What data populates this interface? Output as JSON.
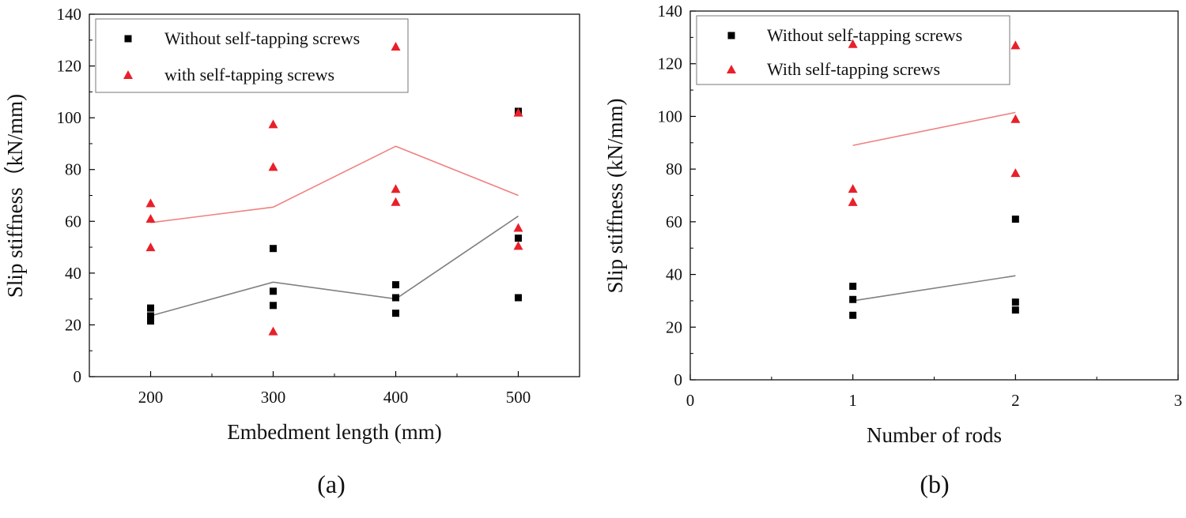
{
  "chart_data": [
    {
      "type": "scatter",
      "panel_label": "(a)",
      "xlabel": "Embedment length (mm)",
      "ylabel": "Slip stiffness（kN/mm)",
      "xlim": [
        150,
        550
      ],
      "ylim": [
        0,
        140
      ],
      "xticks": [
        200,
        300,
        400,
        500
      ],
      "yticks": [
        0,
        20,
        40,
        60,
        80,
        100,
        120,
        140
      ],
      "legend_position": "top-left",
      "series": [
        {
          "name": "Without self-tapping screws",
          "marker": "square",
          "color": "#000000",
          "points": [
            [
              200,
              26.5
            ],
            [
              200,
              23.5
            ],
            [
              200,
              21.5
            ],
            [
              300,
              49.5
            ],
            [
              300,
              33
            ],
            [
              300,
              27.5
            ],
            [
              400,
              35.5
            ],
            [
              400,
              30.5
            ],
            [
              400,
              24.5
            ],
            [
              500,
              102.5
            ],
            [
              500,
              53.5
            ],
            [
              500,
              30.5
            ]
          ],
          "trend": [
            [
              200,
              23.5
            ],
            [
              300,
              36.5
            ],
            [
              400,
              30
            ],
            [
              500,
              62
            ]
          ],
          "trend_color": "#808080"
        },
        {
          "name": "with self-tapping screws",
          "marker": "triangle",
          "color": "#e8202a",
          "points": [
            [
              200,
              67
            ],
            [
              200,
              61
            ],
            [
              200,
              50
            ],
            [
              300,
              97.5
            ],
            [
              300,
              81
            ],
            [
              300,
              17.5
            ],
            [
              400,
              127.5
            ],
            [
              400,
              72.5
            ],
            [
              400,
              67.5
            ],
            [
              500,
              102
            ],
            [
              500,
              57.5
            ],
            [
              500,
              50.5
            ]
          ],
          "trend": [
            [
              200,
              59.5
            ],
            [
              300,
              65.5
            ],
            [
              400,
              89
            ],
            [
              500,
              70
            ]
          ],
          "trend_color": "#f08080"
        }
      ]
    },
    {
      "type": "scatter",
      "panel_label": "(b)",
      "xlabel": "Number of rods",
      "ylabel": "Slip stiffness (kN/mm)",
      "xlim": [
        0,
        3
      ],
      "ylim": [
        0,
        140
      ],
      "xticks": [
        0,
        1,
        2,
        3
      ],
      "yticks": [
        0,
        20,
        40,
        60,
        80,
        100,
        120,
        140
      ],
      "legend_position": "top-left",
      "series": [
        {
          "name": "Without self-tapping screws",
          "marker": "square",
          "color": "#000000",
          "points": [
            [
              1,
              35.5
            ],
            [
              1,
              30.5
            ],
            [
              1,
              24.5
            ],
            [
              2,
              61
            ],
            [
              2,
              29.5
            ],
            [
              2,
              26.5
            ]
          ],
          "trend": [
            [
              1,
              30
            ],
            [
              2,
              39.5
            ]
          ],
          "trend_color": "#808080"
        },
        {
          "name": "With self-tapping screws",
          "marker": "triangle",
          "color": "#e8202a",
          "points": [
            [
              1,
              127.5
            ],
            [
              1,
              72.5
            ],
            [
              1,
              67.5
            ],
            [
              2,
              127
            ],
            [
              2,
              99
            ],
            [
              2,
              78.5
            ]
          ],
          "trend": [
            [
              1,
              89
            ],
            [
              2,
              101.5
            ]
          ],
          "trend_color": "#f08080"
        }
      ]
    }
  ]
}
